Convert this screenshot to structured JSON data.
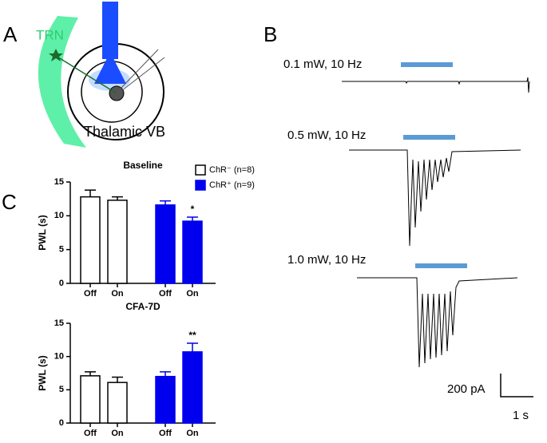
{
  "panels": {
    "a": "A",
    "b": "B",
    "c": "C"
  },
  "diagram": {
    "region": "TRN",
    "target": "Thalamic VB"
  },
  "traces": {
    "conditions": [
      "0.1 mW, 10 Hz",
      "0.5 mW, 10 Hz",
      "1.0 mW, 10 Hz"
    ],
    "scale_y": "200 pA",
    "scale_x": "1 s"
  },
  "chart_data": [
    {
      "type": "bar",
      "title": "Baseline",
      "ylabel": "PWL (s)",
      "categories": [
        "Off",
        "On",
        "Off",
        "On"
      ],
      "series": [
        {
          "name": "ChR⁻ (n=8)",
          "color": "#ffffff",
          "values": [
            12.8,
            12.3,
            null,
            null
          ],
          "errors": [
            1.0,
            0.5,
            null,
            null
          ]
        },
        {
          "name": "ChR⁺ (n=9)",
          "color": "#0000ee",
          "values": [
            null,
            null,
            11.6,
            9.2
          ],
          "errors": [
            null,
            null,
            0.6,
            0.6
          ]
        }
      ],
      "significance": [
        null,
        null,
        null,
        "*"
      ],
      "ylim": [
        0,
        15
      ],
      "yticks": [
        0,
        5,
        10,
        15
      ],
      "legend": "top-right"
    },
    {
      "type": "bar",
      "title": "CFA-7D",
      "ylabel": "PWL (s)",
      "categories": [
        "Off",
        "On",
        "Off",
        "On"
      ],
      "series": [
        {
          "color": "#ffffff",
          "values": [
            7.1,
            6.1,
            null,
            null
          ],
          "errors": [
            0.6,
            0.8,
            null,
            null
          ]
        },
        {
          "color": "#0000ee",
          "values": [
            null,
            null,
            7.0,
            10.7
          ],
          "errors": [
            null,
            null,
            0.7,
            1.3
          ]
        }
      ],
      "significance": [
        null,
        null,
        null,
        "**"
      ],
      "ylim": [
        0,
        15
      ],
      "yticks": [
        0,
        5,
        10,
        15
      ]
    }
  ]
}
